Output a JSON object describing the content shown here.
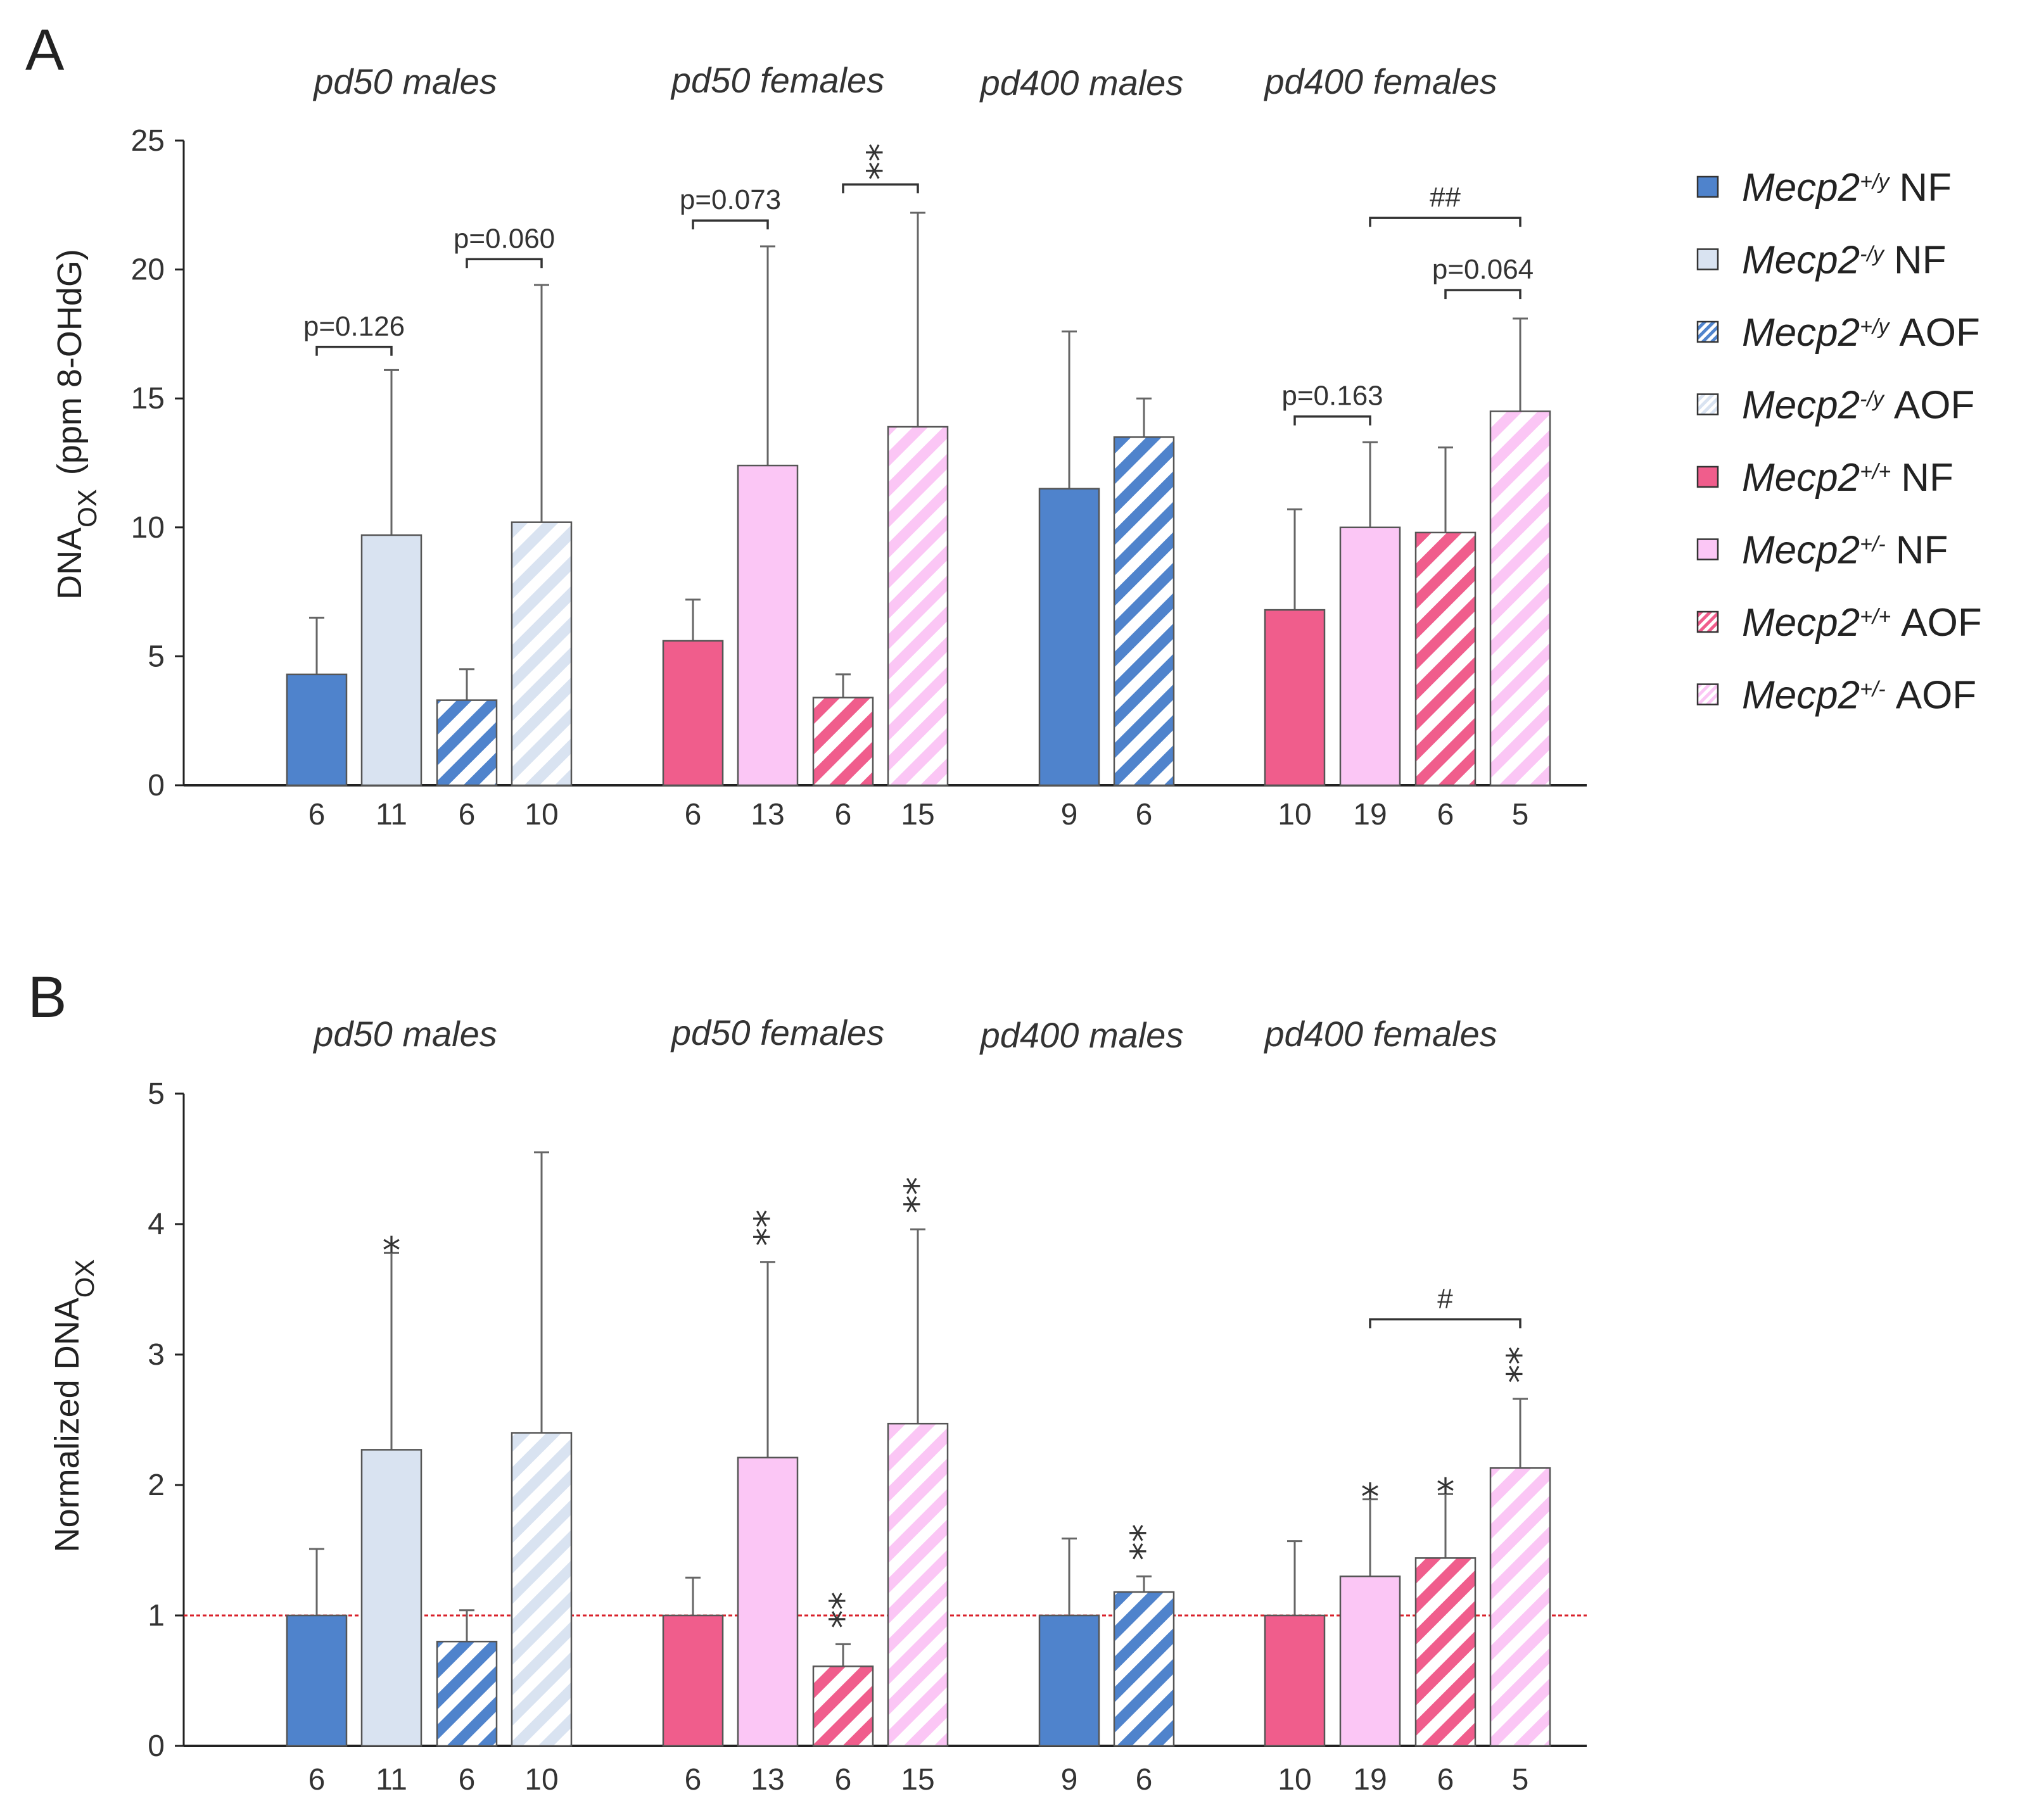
{
  "colors": {
    "male_wt": "#4f83cc",
    "male_mut": "#d9e3f1",
    "female_wt": "#f05d8c",
    "female_mut": "#fbc6f5",
    "axis": "#222222",
    "reference_line": "#d9202a"
  },
  "group_titles": [
    "pd50 males",
    "pd50 females",
    "pd400 males",
    "pd400 females"
  ],
  "legend": {
    "items": [
      {
        "gene": "Mecp2",
        "genotype": "+/y",
        "diet": "NF",
        "color_key": "male_wt",
        "hatched": false
      },
      {
        "gene": "Mecp2",
        "genotype": "-/y",
        "diet": "NF",
        "color_key": "male_mut",
        "hatched": false
      },
      {
        "gene": "Mecp2",
        "genotype": "+/y",
        "diet": "AOF",
        "color_key": "male_wt",
        "hatched": true
      },
      {
        "gene": "Mecp2",
        "genotype": "-/y",
        "diet": "AOF",
        "color_key": "male_mut",
        "hatched": true
      },
      {
        "gene": "Mecp2",
        "genotype": "+/+",
        "diet": "NF",
        "color_key": "female_wt",
        "hatched": false
      },
      {
        "gene": "Mecp2",
        "genotype": "+/-",
        "diet": "NF",
        "color_key": "female_mut",
        "hatched": false
      },
      {
        "gene": "Mecp2",
        "genotype": "+/+",
        "diet": "AOF",
        "color_key": "female_wt",
        "hatched": true
      },
      {
        "gene": "Mecp2",
        "genotype": "+/-",
        "diet": "AOF",
        "color_key": "female_mut",
        "hatched": true
      }
    ]
  },
  "chart_data": [
    {
      "panel": "A",
      "type": "bar",
      "ylabel_main": "DNA",
      "ylabel_sub": "OX",
      "ylabel_rest": "(ppm  8-OHdG)",
      "ylim": [
        0,
        25
      ],
      "yticks": [
        0,
        5,
        10,
        15,
        20,
        25
      ],
      "bars": [
        {
          "group": 0,
          "color_key": "male_wt",
          "hatched": false,
          "value": 4.3,
          "error": 6.5,
          "n": "6"
        },
        {
          "group": 0,
          "color_key": "male_mut",
          "hatched": false,
          "value": 9.7,
          "error": 16.1,
          "n": "11"
        },
        {
          "group": 0,
          "color_key": "male_wt",
          "hatched": true,
          "value": 3.3,
          "error": 4.5,
          "n": "6"
        },
        {
          "group": 0,
          "color_key": "male_mut",
          "hatched": true,
          "value": 10.2,
          "error": 19.4,
          "n": "10"
        },
        {
          "group": 1,
          "color_key": "female_wt",
          "hatched": false,
          "value": 5.6,
          "error": 7.2,
          "n": "6"
        },
        {
          "group": 1,
          "color_key": "female_mut",
          "hatched": false,
          "value": 12.4,
          "error": 20.9,
          "n": "13"
        },
        {
          "group": 1,
          "color_key": "female_wt",
          "hatched": true,
          "value": 3.4,
          "error": 4.3,
          "n": "6"
        },
        {
          "group": 1,
          "color_key": "female_mut",
          "hatched": true,
          "value": 13.9,
          "error": 22.2,
          "n": "15"
        },
        {
          "group": 2,
          "color_key": "male_wt",
          "hatched": false,
          "value": 11.5,
          "error": 17.6,
          "n": "9"
        },
        {
          "group": 2,
          "color_key": "male_wt",
          "hatched": true,
          "value": 13.5,
          "error": 15.0,
          "n": "6"
        },
        {
          "group": 3,
          "color_key": "female_wt",
          "hatched": false,
          "value": 6.8,
          "error": 10.7,
          "n": "10"
        },
        {
          "group": 3,
          "color_key": "female_mut",
          "hatched": false,
          "value": 10.0,
          "error": 13.3,
          "n": "19"
        },
        {
          "group": 3,
          "color_key": "female_wt",
          "hatched": true,
          "value": 9.8,
          "error": 13.1,
          "n": "6"
        },
        {
          "group": 3,
          "color_key": "female_mut",
          "hatched": true,
          "value": 14.5,
          "error": 18.1,
          "n": "5"
        }
      ],
      "brackets": [
        {
          "from": 0,
          "to": 1,
          "y": 17.0,
          "label": "p=0.126",
          "kind": "text"
        },
        {
          "from": 2,
          "to": 3,
          "y": 20.4,
          "label": "p=0.060",
          "kind": "text"
        },
        {
          "from": 4,
          "to": 5,
          "y": 21.9,
          "label": "p=0.073",
          "kind": "text"
        },
        {
          "from": 6,
          "to": 7,
          "y": 23.3,
          "label": "**",
          "kind": "star"
        },
        {
          "from": 11,
          "to": 13,
          "y": 22.0,
          "label": "##",
          "kind": "text"
        },
        {
          "from": 12,
          "to": 13,
          "y": 19.2,
          "label": "p=0.064",
          "kind": "text"
        },
        {
          "from": 10,
          "to": 11,
          "y": 14.3,
          "label": "p=0.163",
          "kind": "text"
        }
      ],
      "bar_annotations": [],
      "reference_line": null
    },
    {
      "panel": "B",
      "type": "bar",
      "ylabel_main": "Normalized DNA",
      "ylabel_sub": "OX",
      "ylabel_rest": "",
      "ylim": [
        0,
        5
      ],
      "yticks": [
        0,
        1,
        2,
        3,
        4,
        5
      ],
      "bars": [
        {
          "group": 0,
          "color_key": "male_wt",
          "hatched": false,
          "value": 1.0,
          "error": 1.51,
          "n": "6"
        },
        {
          "group": 0,
          "color_key": "male_mut",
          "hatched": false,
          "value": 2.27,
          "error": 3.78,
          "n": "11"
        },
        {
          "group": 0,
          "color_key": "male_wt",
          "hatched": true,
          "value": 0.8,
          "error": 1.04,
          "n": "6"
        },
        {
          "group": 0,
          "color_key": "male_mut",
          "hatched": true,
          "value": 2.4,
          "error": 4.55,
          "n": "10"
        },
        {
          "group": 1,
          "color_key": "female_wt",
          "hatched": false,
          "value": 1.0,
          "error": 1.29,
          "n": "6"
        },
        {
          "group": 1,
          "color_key": "female_mut",
          "hatched": false,
          "value": 2.21,
          "error": 3.71,
          "n": "13"
        },
        {
          "group": 1,
          "color_key": "female_wt",
          "hatched": true,
          "value": 0.61,
          "error": 0.78,
          "n": "6"
        },
        {
          "group": 1,
          "color_key": "female_mut",
          "hatched": true,
          "value": 2.47,
          "error": 3.96,
          "n": "15"
        },
        {
          "group": 2,
          "color_key": "male_wt",
          "hatched": false,
          "value": 1.0,
          "error": 1.59,
          "n": "9"
        },
        {
          "group": 2,
          "color_key": "male_wt",
          "hatched": true,
          "value": 1.18,
          "error": 1.3,
          "n": "6"
        },
        {
          "group": 3,
          "color_key": "female_wt",
          "hatched": false,
          "value": 1.0,
          "error": 1.57,
          "n": "10"
        },
        {
          "group": 3,
          "color_key": "female_mut",
          "hatched": false,
          "value": 1.3,
          "error": 1.89,
          "n": "19"
        },
        {
          "group": 3,
          "color_key": "female_wt",
          "hatched": true,
          "value": 1.44,
          "error": 1.93,
          "n": "6"
        },
        {
          "group": 3,
          "color_key": "female_mut",
          "hatched": true,
          "value": 2.13,
          "error": 2.66,
          "n": "5"
        }
      ],
      "brackets": [
        {
          "from": 11,
          "to": 13,
          "y": 3.27,
          "label": "#",
          "kind": "text"
        }
      ],
      "bar_annotations": [
        {
          "bar": 1,
          "label": "*"
        },
        {
          "bar": 5,
          "label": "**"
        },
        {
          "bar": 6,
          "label": "**"
        },
        {
          "bar": 7,
          "label": "**"
        },
        {
          "bar": 9,
          "label": "**"
        },
        {
          "bar": 11,
          "label": "*"
        },
        {
          "bar": 12,
          "label": "*"
        },
        {
          "bar": 13,
          "label": "**"
        }
      ],
      "reference_line": 1
    }
  ]
}
